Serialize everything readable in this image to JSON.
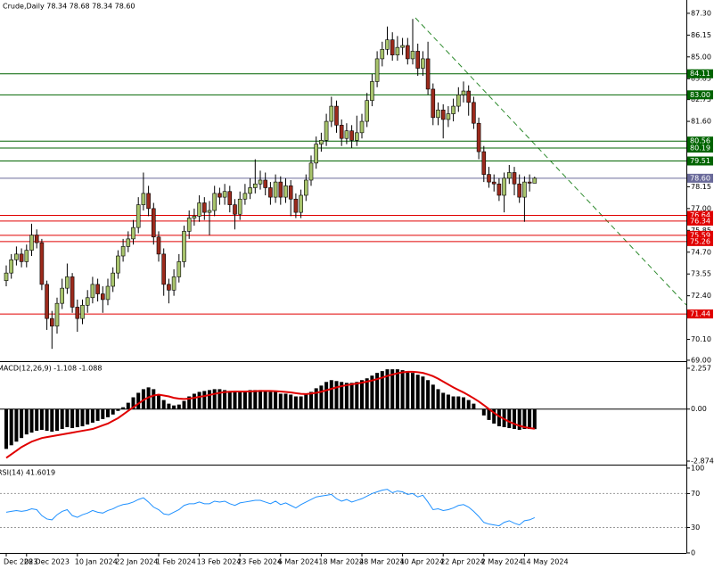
{
  "chart_data": [
    {
      "type": "candlestick",
      "title": "Crude,Daily  78.34 78.68 78.34 78.60",
      "categories": [
        "Dec 2023",
        null,
        null,
        null,
        "28 Dec 2023",
        null,
        null,
        null,
        null,
        null,
        null,
        null,
        null,
        null,
        "10 Jan 2024",
        null,
        null,
        null,
        null,
        null,
        null,
        null,
        "22 Jan 2024",
        null,
        null,
        null,
        null,
        null,
        null,
        null,
        "1 Feb 2024",
        null,
        null,
        null,
        null,
        null,
        null,
        null,
        "13 Feb 2024",
        null,
        null,
        null,
        null,
        null,
        null,
        null,
        "23 Feb 2024",
        null,
        null,
        null,
        null,
        null,
        null,
        null,
        "6 Mar 2024",
        null,
        null,
        null,
        null,
        null,
        null,
        null,
        "18 Mar 2024",
        null,
        null,
        null,
        null,
        null,
        null,
        null,
        "28 Mar 2024",
        null,
        null,
        null,
        null,
        null,
        null,
        null,
        "10 Apr 2024",
        null,
        null,
        null,
        null,
        null,
        null,
        null,
        "22 Apr 2024",
        null,
        null,
        null,
        null,
        null,
        null,
        null,
        "2 May 2024",
        null,
        null,
        null,
        null,
        null,
        null,
        null,
        "14 May 2024",
        null,
        null
      ],
      "open": [
        73.2,
        73.6,
        74.3,
        74.6,
        74.2,
        74.8,
        75.6,
        75.2,
        73.0,
        71.2,
        70.8,
        72.0,
        72.8,
        73.4,
        71.8,
        71.2,
        71.9,
        72.3,
        73.0,
        72.5,
        72.2,
        72.9,
        73.6,
        74.5,
        75.0,
        75.4,
        76.0,
        77.2,
        77.8,
        77.0,
        75.5,
        74.6,
        73.0,
        72.7,
        73.4,
        74.2,
        75.8,
        76.5,
        76.6,
        77.3,
        76.8,
        76.9,
        77.8,
        77.6,
        77.9,
        77.2,
        76.7,
        77.5,
        77.8,
        78.1,
        78.3,
        78.5,
        78.1,
        77.6,
        78.4,
        77.6,
        78.2,
        77.5,
        76.8,
        77.7,
        78.5,
        79.4,
        80.4,
        80.6,
        81.6,
        82.4,
        81.4,
        80.7,
        81.1,
        80.6,
        81.0,
        81.6,
        82.7,
        83.7,
        84.9,
        85.4,
        85.9,
        85.1,
        85.5,
        85.6,
        84.9,
        85.3,
        84.4,
        84.9,
        83.3,
        81.8,
        82.2,
        81.7,
        82.0,
        82.4,
        83.0,
        83.2,
        82.6,
        81.5,
        80.0,
        78.8,
        78.4,
        78.3,
        77.7,
        78.6,
        78.9,
        78.3,
        77.6,
        78.4,
        78.34
      ],
      "high": [
        74.0,
        74.6,
        75.0,
        74.9,
        75.1,
        76.2,
        75.9,
        75.4,
        73.2,
        71.6,
        72.3,
        73.3,
        74.1,
        73.6,
        72.2,
        72.2,
        72.7,
        73.4,
        73.3,
        72.9,
        73.3,
        73.9,
        74.8,
        75.4,
        75.8,
        76.4,
        77.6,
        78.9,
        78.2,
        77.3,
        75.8,
        74.9,
        73.3,
        73.8,
        74.6,
        76.1,
        76.9,
        77.0,
        77.7,
        77.6,
        77.4,
        78.2,
        78.1,
        78.3,
        78.2,
        77.5,
        77.9,
        78.3,
        78.6,
        79.6,
        79.0,
        78.9,
        78.4,
        78.8,
        78.7,
        78.6,
        78.5,
        77.8,
        78.0,
        78.8,
        79.8,
        80.8,
        81.0,
        82.0,
        82.9,
        82.7,
        81.7,
        81.5,
        81.4,
        81.9,
        82.0,
        83.1,
        84.1,
        85.3,
        85.8,
        86.6,
        86.3,
        86.1,
        86.0,
        86.0,
        87.0,
        85.7,
        85.3,
        85.8,
        83.6,
        82.6,
        82.5,
        82.4,
        82.8,
        83.4,
        83.7,
        83.5,
        82.9,
        81.8,
        80.3,
        79.2,
        78.8,
        78.6,
        78.9,
        79.3,
        79.2,
        78.8,
        78.7,
        78.8,
        78.68
      ],
      "low": [
        72.9,
        73.3,
        74.0,
        73.9,
        73.9,
        74.5,
        74.9,
        72.7,
        70.6,
        69.6,
        70.4,
        71.7,
        72.5,
        71.5,
        70.5,
        70.9,
        71.5,
        72.0,
        72.1,
        71.5,
        71.9,
        72.6,
        73.3,
        74.2,
        74.7,
        75.1,
        75.7,
        76.9,
        76.6,
        75.1,
        74.2,
        72.4,
        72.0,
        72.4,
        73.1,
        73.9,
        75.4,
        76.1,
        76.3,
        76.4,
        75.6,
        76.6,
        77.2,
        77.2,
        76.8,
        75.9,
        76.4,
        77.2,
        77.5,
        77.8,
        78.0,
        77.7,
        77.2,
        77.3,
        77.2,
        77.3,
        76.6,
        76.5,
        76.5,
        77.4,
        78.2,
        79.1,
        80.0,
        80.3,
        81.3,
        81.0,
        80.3,
        80.4,
        80.2,
        80.3,
        80.7,
        81.3,
        82.4,
        83.4,
        84.5,
        85.1,
        84.8,
        84.8,
        85.1,
        84.6,
        84.6,
        84.0,
        84.0,
        83.0,
        81.4,
        81.4,
        80.7,
        81.3,
        81.6,
        82.1,
        82.6,
        81.9,
        81.2,
        79.6,
        78.4,
        78.1,
        77.9,
        77.4,
        76.8,
        78.3,
        77.7,
        77.3,
        76.3,
        77.9,
        78.34
      ],
      "close": [
        73.6,
        74.3,
        74.6,
        74.2,
        74.8,
        75.6,
        75.2,
        73.0,
        71.2,
        70.8,
        72.0,
        72.8,
        73.4,
        71.8,
        71.2,
        71.9,
        72.3,
        73.0,
        72.5,
        72.2,
        72.9,
        73.6,
        74.5,
        75.0,
        75.4,
        76.0,
        77.2,
        77.8,
        77.0,
        75.5,
        74.6,
        73.0,
        72.7,
        73.4,
        74.2,
        75.8,
        76.5,
        76.6,
        77.3,
        76.8,
        76.9,
        77.8,
        77.6,
        77.9,
        77.2,
        76.7,
        77.5,
        77.8,
        78.1,
        78.3,
        78.5,
        78.1,
        77.6,
        78.4,
        77.6,
        78.2,
        77.5,
        76.8,
        77.7,
        78.5,
        79.4,
        80.4,
        80.6,
        81.6,
        82.4,
        81.4,
        80.7,
        81.1,
        80.6,
        81.0,
        81.6,
        82.7,
        83.7,
        84.9,
        85.4,
        85.9,
        85.1,
        85.5,
        85.6,
        84.9,
        85.3,
        84.4,
        84.9,
        83.3,
        81.8,
        82.2,
        81.7,
        82.0,
        82.4,
        83.0,
        83.2,
        82.6,
        81.5,
        80.0,
        78.8,
        78.4,
        78.3,
        77.7,
        78.6,
        78.9,
        78.3,
        77.6,
        78.4,
        78.34,
        78.6
      ],
      "up_color": "#a8c46c",
      "down_color": "#9c2a1c",
      "ylim": [
        68.95,
        87.86
      ],
      "yticks": [
        {
          "value": 87.3,
          "label": "87.30"
        },
        86.15,
        {
          "value": 85,
          "label": "85.00"
        },
        83.85,
        82.75,
        {
          "value": 81.6,
          "label": "81.60"
        },
        78.15,
        {
          "value": 77,
          "label": "77.00"
        },
        75.85,
        {
          "value": 74.7,
          "label": "74.70"
        },
        73.55,
        {
          "value": 72.4,
          "label": "72.40"
        },
        {
          "value": 70.1,
          "label": "70.10"
        },
        {
          "value": 69,
          "label": "69.00"
        }
      ],
      "levels": [
        {
          "value": 84.11,
          "color": "#006400"
        },
        {
          "value": 83,
          "label": "83.00",
          "color": "#006400"
        },
        {
          "value": 80.56,
          "color": "#006400"
        },
        {
          "value": 80.19,
          "color": "#006400"
        },
        {
          "value": 79.51,
          "color": "#006400"
        },
        {
          "value": 78.6,
          "label": "78.60",
          "color": "#6a6a9a"
        },
        {
          "value": 76.64,
          "color": "#e00000"
        },
        {
          "value": 76.34,
          "color": "#e00000"
        },
        {
          "value": 75.59,
          "color": "#e00000"
        },
        {
          "value": 75.26,
          "color": "#e00000"
        },
        {
          "value": 71.44,
          "color": "#e00000"
        }
      ]
    },
    {
      "type": "macd",
      "title": "MACD(12,26,9) -1.108 -1.088",
      "histogram": [
        -2.2,
        -2.0,
        -1.8,
        -1.6,
        -1.4,
        -1.3,
        -1.2,
        -1.15,
        -1.2,
        -1.25,
        -1.2,
        -1.1,
        -1.0,
        -1.05,
        -1.0,
        -0.95,
        -0.85,
        -0.75,
        -0.65,
        -0.55,
        -0.45,
        -0.3,
        -0.1,
        0.1,
        0.35,
        0.65,
        0.9,
        1.1,
        1.2,
        1.1,
        0.8,
        0.5,
        0.3,
        0.2,
        0.25,
        0.45,
        0.7,
        0.85,
        0.95,
        1.0,
        1.05,
        1.1,
        1.1,
        1.05,
        1.0,
        0.95,
        0.95,
        1.0,
        1.05,
        1.05,
        1.05,
        1.0,
        0.95,
        0.95,
        0.85,
        0.85,
        0.8,
        0.7,
        0.7,
        0.8,
        0.95,
        1.15,
        1.3,
        1.5,
        1.6,
        1.55,
        1.5,
        1.45,
        1.45,
        1.5,
        1.6,
        1.7,
        1.85,
        2.0,
        2.1,
        2.2,
        2.2,
        2.2,
        2.15,
        2.1,
        2.0,
        1.9,
        1.8,
        1.6,
        1.35,
        1.1,
        0.9,
        0.8,
        0.7,
        0.7,
        0.65,
        0.5,
        0.3,
        0.0,
        -0.35,
        -0.6,
        -0.8,
        -0.95,
        -1.0,
        -1.05,
        -1.1,
        -1.15,
        -1.1,
        -1.1,
        -1.108
      ],
      "signal": [
        -2.7,
        -2.5,
        -2.3,
        -2.1,
        -1.95,
        -1.8,
        -1.7,
        -1.6,
        -1.55,
        -1.5,
        -1.45,
        -1.4,
        -1.35,
        -1.3,
        -1.25,
        -1.2,
        -1.15,
        -1.1,
        -1.0,
        -0.9,
        -0.8,
        -0.65,
        -0.5,
        -0.3,
        -0.1,
        0.1,
        0.3,
        0.5,
        0.65,
        0.75,
        0.8,
        0.75,
        0.7,
        0.62,
        0.58,
        0.56,
        0.58,
        0.62,
        0.68,
        0.72,
        0.78,
        0.84,
        0.9,
        0.94,
        0.96,
        0.97,
        0.97,
        0.97,
        0.98,
        0.99,
        1.0,
        1.0,
        1.0,
        0.99,
        0.97,
        0.95,
        0.92,
        0.88,
        0.84,
        0.83,
        0.86,
        0.9,
        0.96,
        1.04,
        1.12,
        1.2,
        1.27,
        1.32,
        1.37,
        1.41,
        1.46,
        1.52,
        1.58,
        1.66,
        1.74,
        1.83,
        1.91,
        1.98,
        2.03,
        2.06,
        2.06,
        2.04,
        2.0,
        1.92,
        1.82,
        1.68,
        1.52,
        1.36,
        1.2,
        1.06,
        0.92,
        0.76,
        0.6,
        0.42,
        0.22,
        0.0,
        -0.2,
        -0.4,
        -0.55,
        -0.7,
        -0.82,
        -0.92,
        -1.0,
        -1.05,
        -1.088
      ],
      "histogram_color": "#000000",
      "signal_color": "#e00000",
      "ylim": [
        -3.07,
        2.5
      ],
      "yticks": [
        2.257,
        {
          "value": 0,
          "label": "0.00"
        },
        -2.874
      ]
    },
    {
      "type": "line",
      "title": "RSI(14) 41.6019",
      "values": [
        48,
        49,
        50,
        49,
        50,
        52,
        51,
        44,
        40,
        39,
        45,
        49,
        51,
        44,
        42,
        45,
        47,
        50,
        48,
        47,
        50,
        52,
        55,
        57,
        58,
        60,
        63,
        65,
        60,
        54,
        51,
        46,
        45,
        48,
        51,
        56,
        58,
        58,
        60,
        58,
        58,
        61,
        60,
        61,
        58,
        56,
        59,
        60,
        61,
        62,
        62,
        60,
        58,
        61,
        57,
        59,
        56,
        53,
        57,
        60,
        63,
        66,
        67,
        68,
        69,
        64,
        61,
        63,
        60,
        62,
        64,
        67,
        70,
        72,
        74,
        75,
        71,
        73,
        72,
        69,
        70,
        66,
        68,
        60,
        51,
        52,
        50,
        51,
        53,
        56,
        57,
        54,
        49,
        43,
        36,
        34,
        33,
        32,
        36,
        38,
        35,
        33,
        38,
        39,
        41.6019
      ],
      "color": "#1e90ff",
      "ylim": [
        0,
        102
      ],
      "yticks": [
        100,
        70,
        30,
        0
      ],
      "grid_ticks": [
        70,
        30
      ]
    }
  ]
}
